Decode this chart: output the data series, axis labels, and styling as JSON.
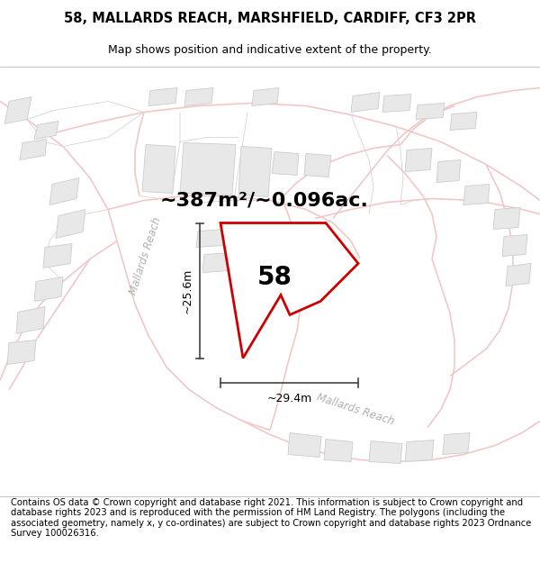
{
  "title_line1": "58, MALLARDS REACH, MARSHFIELD, CARDIFF, CF3 2PR",
  "title_line2": "Map shows position and indicative extent of the property.",
  "footer_text": "Contains OS data © Crown copyright and database right 2021. This information is subject to Crown copyright and database rights 2023 and is reproduced with the permission of HM Land Registry. The polygons (including the associated geometry, namely x, y co-ordinates) are subject to Crown copyright and database rights 2023 Ordnance Survey 100026316.",
  "area_label": "~387m²/~0.096ac.",
  "number_label": "58",
  "dim_width_label": "~29.4m",
  "dim_height_label": "~25.6m",
  "road_label_1": "Mallards Reach",
  "road_label_2": "Mallards Reach",
  "bg_color": "#ffffff",
  "map_bg": "#ffffff",
  "road_color": "#f0c8c8",
  "building_color": "#e8e8e8",
  "building_edge_color": "#cccccc",
  "plot_fill": "#ffffff",
  "plot_edge_color": "#cc0000",
  "plot_lw": 2.0,
  "dim_line_color": "#444444",
  "title_fontsize": 10.5,
  "subtitle_fontsize": 9.0,
  "area_fontsize": 16,
  "number_fontsize": 20,
  "footer_fontsize": 7.2,
  "road_label_fontsize": 8.5,
  "road_lw": 1.2,
  "building_lw": 0.6
}
